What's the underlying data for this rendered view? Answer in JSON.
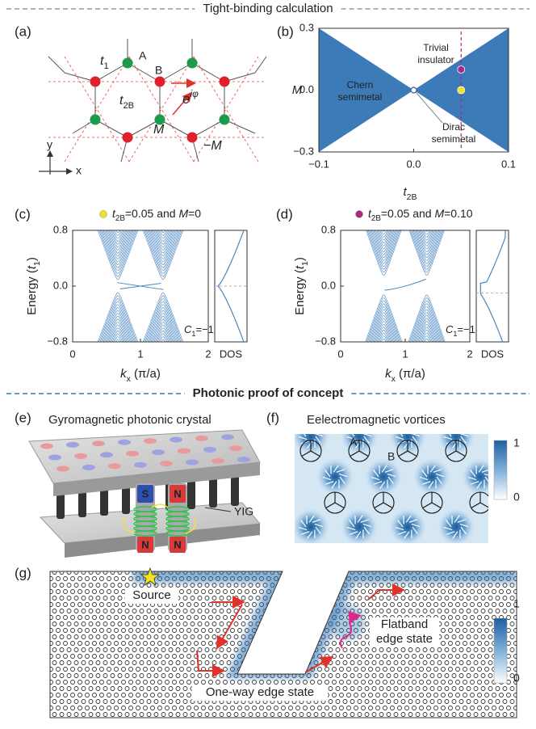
{
  "sections": [
    "Tight-binding calculation",
    "Photonic proof of concept"
  ],
  "panel_a": {
    "label": "(a)",
    "t1": [
      {
        "text": "t",
        "style": "italic"
      },
      {
        "text": "1",
        "style": "sub"
      }
    ],
    "site_a": "A",
    "site_b": "B",
    "t2b": [
      {
        "text": "t",
        "style": "italic"
      },
      {
        "text": "2B",
        "style": "sub"
      }
    ],
    "phase": [
      {
        "text": "e",
        "style": "italic"
      },
      {
        "text": "iφ",
        "style": "sup"
      }
    ],
    "m_plus": "M",
    "m_minus": "−M",
    "axis_y": "y",
    "axis_x": "x"
  },
  "panel_b": {
    "label": "(b)",
    "xlabel": [
      {
        "text": "t",
        "style": "italic"
      },
      {
        "text": "2B",
        "style": "sub"
      }
    ],
    "ylabel": "M",
    "xlim": [
      -0.1,
      0.1
    ],
    "ylim": [
      -0.3,
      0.3
    ],
    "xticks": [
      {
        "value": -0.1,
        "label": "−0.1"
      },
      {
        "value": 0,
        "label": "0.0"
      },
      0.1
    ],
    "yticks": [
      0.3,
      {
        "value": 0,
        "label": "0.0"
      },
      {
        "value": -0.3,
        "label": "−0.3"
      }
    ],
    "trivial": [
      "Trivial",
      "insulator"
    ],
    "chern": [
      "Chern",
      "semimetal"
    ],
    "dirac": [
      "Dirac",
      "semimetal"
    ],
    "fill": "#3d7ab8",
    "points": [
      {
        "x": 0.05,
        "y": 0,
        "color": "#efe31f"
      },
      {
        "x": 0.05,
        "y": 0.1,
        "color": "#a8288e"
      }
    ]
  },
  "panel_c": {
    "label": "(c)",
    "dot_color": "#efe31f",
    "title": [
      {
        "text": "t",
        "style": "italic"
      },
      {
        "text": "2B",
        "style": "sub"
      },
      {
        "text": "=0.05 and "
      },
      {
        "text": "M",
        "style": "italic"
      },
      {
        "text": "=0"
      }
    ],
    "ylabel": [
      {
        "text": "Energy ("
      },
      {
        "text": "t",
        "style": "italic"
      },
      {
        "text": "1",
        "style": "sub"
      },
      {
        "text": ")"
      }
    ],
    "xlabel": [
      {
        "text": "k",
        "style": "italic"
      },
      {
        "text": "x",
        "style": "sub"
      },
      {
        "text": " (π/a)"
      }
    ],
    "xlim": [
      0,
      2
    ],
    "xticks": [
      0,
      1,
      2
    ],
    "ylim": [
      -0.8,
      0.8
    ],
    "yticks": [
      0.8,
      {
        "value": 0,
        "label": "0.0"
      },
      {
        "value": -0.8,
        "label": "−0.8"
      }
    ],
    "dos": "DOS",
    "chern": [
      {
        "text": "C",
        "style": "italic"
      },
      {
        "text": "1",
        "style": "sub"
      },
      {
        "text": "=−1"
      }
    ],
    "color": "#4a86c0"
  },
  "panel_d": {
    "label": "(d)",
    "dot_color": "#b0287f",
    "title": [
      {
        "text": "t",
        "style": "italic"
      },
      {
        "text": "2B",
        "style": "sub"
      },
      {
        "text": "=0.05 and "
      },
      {
        "text": "M",
        "style": "italic"
      },
      {
        "text": "=0.10"
      }
    ],
    "ylabel": [
      {
        "text": "Energy ("
      },
      {
        "text": "t",
        "style": "italic"
      },
      {
        "text": "1",
        "style": "sub"
      },
      {
        "text": ")"
      }
    ],
    "xlabel": [
      {
        "text": "k",
        "style": "italic"
      },
      {
        "text": "x",
        "style": "sub"
      },
      {
        "text": " (π/a)"
      }
    ],
    "xlim": [
      0,
      2
    ],
    "xticks": [
      0,
      1,
      2
    ],
    "ylim": [
      -0.8,
      0.8
    ],
    "yticks": [
      0.8,
      {
        "value": 0,
        "label": "0.0"
      },
      {
        "value": -0.8,
        "label": "−0.8"
      }
    ],
    "dos": "DOS",
    "chern": [
      {
        "text": "C",
        "style": "italic"
      },
      {
        "text": "1",
        "style": "sub"
      },
      {
        "text": "=−1"
      }
    ],
    "color": "#4a86c0"
  },
  "panel_e": {
    "label": "(e)",
    "title": "Gyromagnetic photonic crystal",
    "magnets": [
      "S",
      "N",
      "N",
      "N"
    ],
    "material": "YIG"
  },
  "panel_f": {
    "label": "(f)",
    "title": "Eelectromagnetic vortices",
    "site_a": "A",
    "site_b": "B",
    "colorbar": [
      1,
      0
    ]
  },
  "panel_g": {
    "label": "(g)",
    "source": "Source",
    "flatband": [
      "Flatband",
      "edge state"
    ],
    "oneway": "One-way edge state",
    "colorbar": [
      1,
      0
    ]
  }
}
